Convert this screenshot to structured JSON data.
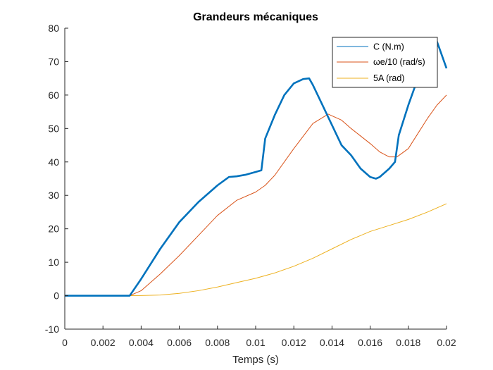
{
  "chart_data": {
    "type": "line",
    "title": "Grandeurs mécaniques",
    "xlabel": "Temps (s)",
    "ylabel": "",
    "xlim": [
      0,
      0.02
    ],
    "ylim": [
      -10,
      80
    ],
    "xticks": [
      "0",
      "0.002",
      "0.004",
      "0.006",
      "0.008",
      "0.01",
      "0.012",
      "0.014",
      "0.016",
      "0.018",
      "0.02"
    ],
    "yticks": [
      "-10",
      "0",
      "10",
      "20",
      "30",
      "40",
      "50",
      "60",
      "70",
      "80"
    ],
    "legend_position": "top-right",
    "grid": false,
    "series": [
      {
        "name": "C (N.m)",
        "color": "#0072BD",
        "x": [
          0,
          0.0034,
          0.004,
          0.005,
          0.006,
          0.007,
          0.008,
          0.0086,
          0.009,
          0.0095,
          0.01,
          0.0103,
          0.0105,
          0.011,
          0.0115,
          0.012,
          0.0125,
          0.0128,
          0.013,
          0.0135,
          0.014,
          0.0145,
          0.015,
          0.0155,
          0.016,
          0.0163,
          0.0165,
          0.017,
          0.0173,
          0.0175,
          0.018,
          0.0185,
          0.019,
          0.0195,
          0.02
        ],
        "y": [
          0,
          0,
          5,
          14,
          22,
          28,
          33,
          35.5,
          35.7,
          36.2,
          37,
          37.5,
          47,
          54,
          60,
          63.5,
          64.8,
          65,
          63,
          57,
          51,
          45,
          42,
          38,
          35.5,
          35,
          35.5,
          38,
          40,
          48,
          57,
          65,
          72,
          76,
          68
        ]
      },
      {
        "name": "ωe/10 (rad/s)",
        "color": "#D95319",
        "x": [
          0,
          0.0034,
          0.004,
          0.005,
          0.006,
          0.007,
          0.008,
          0.009,
          0.01,
          0.0105,
          0.011,
          0.012,
          0.013,
          0.0138,
          0.0145,
          0.015,
          0.016,
          0.0165,
          0.017,
          0.0174,
          0.018,
          0.0185,
          0.019,
          0.0195,
          0.02
        ],
        "y": [
          0,
          0,
          1.5,
          6.5,
          12,
          18,
          24,
          28.5,
          31,
          33,
          36,
          44,
          51.5,
          54.3,
          52.5,
          50,
          45.5,
          43,
          41.5,
          41.5,
          44,
          48.5,
          53,
          57,
          60
        ]
      },
      {
        "name": "5A (rad)",
        "color": "#EDB120",
        "x": [
          0,
          0.0035,
          0.004,
          0.005,
          0.006,
          0.007,
          0.008,
          0.009,
          0.01,
          0.011,
          0.012,
          0.013,
          0.014,
          0.015,
          0.016,
          0.017,
          0.018,
          0.019,
          0.02
        ],
        "y": [
          0,
          0,
          0.05,
          0.2,
          0.7,
          1.5,
          2.6,
          3.9,
          5.2,
          6.8,
          8.8,
          11.2,
          14,
          16.8,
          19.2,
          21,
          22.8,
          25,
          27.5
        ]
      }
    ]
  }
}
